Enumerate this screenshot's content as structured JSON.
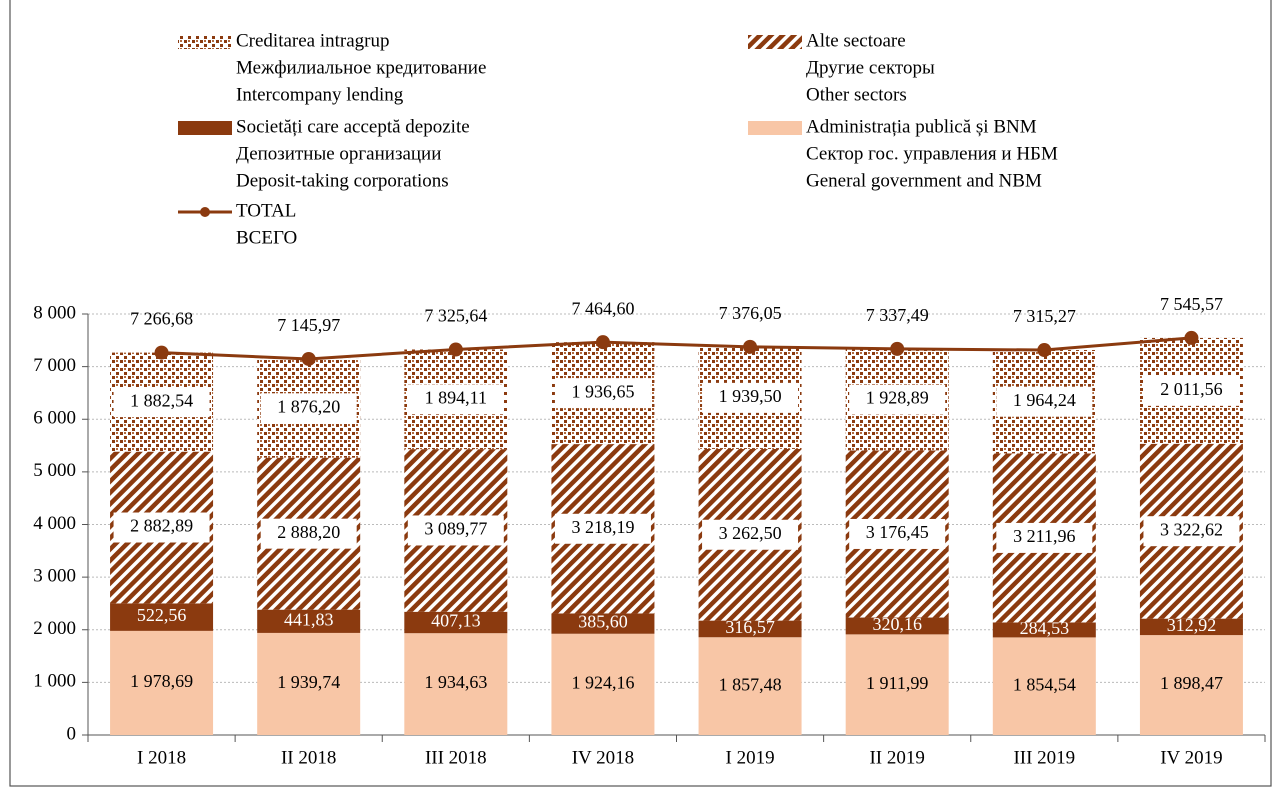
{
  "chart_data": {
    "type": "stacked_bar_line",
    "categories": [
      "I 2018",
      "II 2018",
      "III 2018",
      "IV 2018",
      "I 2019",
      "II 2019",
      "III 2019",
      "IV 2019"
    ],
    "series": [
      {
        "name": [
          "Administrația publică și BNM",
          "Сектор гос. управления и НБМ",
          "General government and NBM"
        ],
        "color": "#f8c6a6",
        "fill": "solid",
        "values": [
          1978.69,
          1939.74,
          1934.63,
          1924.16,
          1857.48,
          1911.99,
          1854.54,
          1898.47
        ],
        "value_labels": [
          "1 978,69",
          "1 939,74",
          "1 934,63",
          "1 924,16",
          "1 857,48",
          "1 911,99",
          "1 854,54",
          "1 898,47"
        ]
      },
      {
        "name": [
          "Societăți care acceptă depozite",
          "Депозитные организации",
          "Deposit-taking corporations"
        ],
        "color": "#8b3a0f",
        "fill": "solid",
        "values": [
          522.56,
          441.83,
          407.13,
          385.6,
          316.57,
          320.16,
          284.53,
          312.92
        ],
        "value_labels": [
          "522,56",
          "441,83",
          "407,13",
          "385,60",
          "316,57",
          "320,16",
          "284,53",
          "312,92"
        ]
      },
      {
        "name": [
          "Alte sectoare",
          "Другие секторы",
          "Other sectors"
        ],
        "color": "#8b3a0f",
        "fill": "hatch",
        "values": [
          2882.89,
          2888.2,
          3089.77,
          3218.19,
          3262.5,
          3176.45,
          3211.96,
          3322.62
        ],
        "value_labels": [
          "2 882,89",
          "2 888,20",
          "3 089,77",
          "3 218,19",
          "3 262,50",
          "3 176,45",
          "3 211,96",
          "3 322,62"
        ]
      },
      {
        "name": [
          "Creditarea intragrup",
          "Межфилиальное кредитование",
          "Intercompany lending"
        ],
        "color": "#8b3a0f",
        "fill": "dots",
        "values": [
          1882.54,
          1876.2,
          1894.11,
          1936.65,
          1939.5,
          1928.89,
          1964.24,
          2011.56
        ],
        "value_labels": [
          "1 882,54",
          "1 876,20",
          "1 894,11",
          "1 936,65",
          "1 939,50",
          "1 928,89",
          "1 964,24",
          "2 011,56"
        ]
      },
      {
        "name": [
          "TOTAL",
          "ВСЕГО"
        ],
        "color": "#8b3a0f",
        "type": "line",
        "values": [
          7266.68,
          7145.97,
          7325.64,
          7464.6,
          7376.05,
          7337.49,
          7315.27,
          7545.57
        ],
        "value_labels": [
          "7 266,68",
          "7 145,97",
          "7 325,64",
          "7 464,60",
          "7 376,05",
          "7 337,49",
          "7 315,27",
          "7 545,57"
        ]
      }
    ],
    "ylim": [
      0,
      8000
    ],
    "yticks": [
      0,
      {
        "value": 1000,
        "label": "1 000"
      },
      {
        "value": 2000,
        "label": "2 000"
      },
      {
        "value": 3000,
        "label": "3 000"
      },
      {
        "value": 4000,
        "label": "4 000"
      },
      {
        "value": 5000,
        "label": "5 000"
      },
      {
        "value": 6000,
        "label": "6 000"
      },
      {
        "value": 7000,
        "label": "7 000"
      },
      {
        "value": 8000,
        "label": "8 000"
      }
    ],
    "grid": true
  }
}
